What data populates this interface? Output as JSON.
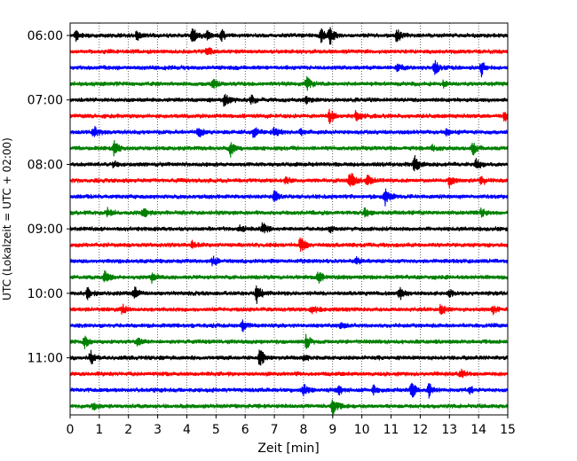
{
  "chart_data": {
    "type": "line",
    "title": "",
    "xlabel": "Zeit  [min]",
    "ylabel": "UTC (Lokalzeit = UTC + 02:00)",
    "xlim": [
      0,
      15
    ],
    "x_ticks": [
      "0",
      "1",
      "2",
      "3",
      "4",
      "5",
      "6",
      "7",
      "8",
      "9",
      "10",
      "11",
      "12",
      "13",
      "14",
      "15"
    ],
    "y_ticks": [
      "06:00",
      "07:00",
      "08:00",
      "09:00",
      "10:00",
      "11:00"
    ],
    "grid": "vertical dotted",
    "trace_minutes": 15,
    "color_cycle": [
      "#000000",
      "#ff0000",
      "#0000ff",
      "#008000"
    ],
    "series": [
      {
        "start": "06:00",
        "color": "#000000",
        "events": [
          [
            0.2,
            0.6
          ],
          [
            2.3,
            0.5
          ],
          [
            4.2,
            1.0
          ],
          [
            4.7,
            0.4
          ],
          [
            5.2,
            0.5
          ],
          [
            8.6,
            0.7
          ],
          [
            8.9,
            0.9
          ],
          [
            11.2,
            0.7
          ]
        ]
      },
      {
        "start": "06:15",
        "color": "#ff0000",
        "events": [
          [
            4.7,
            0.45
          ]
        ]
      },
      {
        "start": "06:30",
        "color": "#0000ff",
        "events": [
          [
            11.2,
            0.45
          ],
          [
            12.5,
            0.8
          ],
          [
            14.1,
            0.75
          ]
        ]
      },
      {
        "start": "06:45",
        "color": "#008000",
        "events": [
          [
            4.9,
            0.55
          ],
          [
            8.1,
            0.8
          ],
          [
            12.8,
            0.35
          ]
        ]
      },
      {
        "start": "07:00",
        "color": "#000000",
        "events": [
          [
            5.3,
            0.75
          ],
          [
            6.2,
            0.4
          ],
          [
            8.1,
            0.35
          ]
        ]
      },
      {
        "start": "07:15",
        "color": "#ff0000",
        "events": [
          [
            8.9,
            0.7
          ],
          [
            9.8,
            0.6
          ],
          [
            14.9,
            0.55
          ]
        ]
      },
      {
        "start": "07:30",
        "color": "#0000ff",
        "events": [
          [
            0.8,
            0.7
          ],
          [
            4.4,
            0.5
          ],
          [
            6.3,
            0.6
          ],
          [
            7.0,
            0.5
          ],
          [
            7.9,
            0.4
          ],
          [
            12.9,
            0.4
          ]
        ]
      },
      {
        "start": "07:45",
        "color": "#008000",
        "events": [
          [
            1.5,
            0.7
          ],
          [
            5.5,
            0.75
          ],
          [
            12.4,
            0.4
          ],
          [
            13.8,
            0.7
          ]
        ]
      },
      {
        "start": "08:00",
        "color": "#000000",
        "events": [
          [
            1.5,
            0.4
          ],
          [
            11.8,
            0.9
          ],
          [
            13.9,
            0.6
          ]
        ]
      },
      {
        "start": "08:15",
        "color": "#ff0000",
        "events": [
          [
            7.4,
            0.4
          ],
          [
            9.6,
            1.0
          ],
          [
            10.2,
            0.7
          ],
          [
            13.0,
            0.6
          ],
          [
            14.1,
            0.55
          ]
        ]
      },
      {
        "start": "08:30",
        "color": "#0000ff",
        "events": [
          [
            7.0,
            0.6
          ],
          [
            10.8,
            1.0
          ]
        ]
      },
      {
        "start": "08:45",
        "color": "#008000",
        "events": [
          [
            1.3,
            0.5
          ],
          [
            2.5,
            0.55
          ],
          [
            10.1,
            0.55
          ],
          [
            14.1,
            0.4
          ]
        ]
      },
      {
        "start": "09:00",
        "color": "#000000",
        "events": [
          [
            5.8,
            0.45
          ],
          [
            6.6,
            0.7
          ],
          [
            8.9,
            0.35
          ]
        ]
      },
      {
        "start": "09:15",
        "color": "#ff0000",
        "events": [
          [
            7.9,
            1.0
          ],
          [
            4.2,
            0.35
          ]
        ]
      },
      {
        "start": "09:30",
        "color": "#0000ff",
        "events": [
          [
            4.9,
            0.5
          ],
          [
            9.8,
            0.35
          ]
        ]
      },
      {
        "start": "09:45",
        "color": "#008000",
        "events": [
          [
            1.2,
            0.65
          ],
          [
            2.8,
            0.6
          ],
          [
            8.5,
            0.65
          ]
        ]
      },
      {
        "start": "10:00",
        "color": "#000000",
        "events": [
          [
            0.6,
            0.6
          ],
          [
            2.2,
            0.6
          ],
          [
            6.4,
            1.0
          ],
          [
            11.3,
            0.6
          ],
          [
            13.0,
            0.4
          ]
        ]
      },
      {
        "start": "10:15",
        "color": "#ff0000",
        "events": [
          [
            1.8,
            0.55
          ],
          [
            8.3,
            0.5
          ],
          [
            12.7,
            0.55
          ],
          [
            14.5,
            0.35
          ]
        ]
      },
      {
        "start": "10:30",
        "color": "#0000ff",
        "events": [
          [
            5.9,
            0.55
          ],
          [
            9.3,
            0.35
          ]
        ]
      },
      {
        "start": "10:45",
        "color": "#008000",
        "events": [
          [
            0.5,
            0.55
          ],
          [
            2.3,
            0.4
          ],
          [
            8.1,
            0.75
          ]
        ]
      },
      {
        "start": "11:00",
        "color": "#000000",
        "events": [
          [
            0.7,
            0.75
          ],
          [
            6.5,
            1.0
          ],
          [
            8.0,
            0.4
          ]
        ]
      },
      {
        "start": "11:15",
        "color": "#ff0000",
        "events": [
          [
            13.4,
            0.55
          ]
        ]
      },
      {
        "start": "11:30",
        "color": "#0000ff",
        "events": [
          [
            8.0,
            0.55
          ],
          [
            9.2,
            0.6
          ],
          [
            10.4,
            0.55
          ],
          [
            11.7,
            1.0
          ],
          [
            12.3,
            0.7
          ],
          [
            13.7,
            0.4
          ]
        ]
      },
      {
        "start": "11:45",
        "color": "#008000",
        "events": [
          [
            0.8,
            0.4
          ],
          [
            9.0,
            0.85
          ]
        ]
      }
    ]
  }
}
